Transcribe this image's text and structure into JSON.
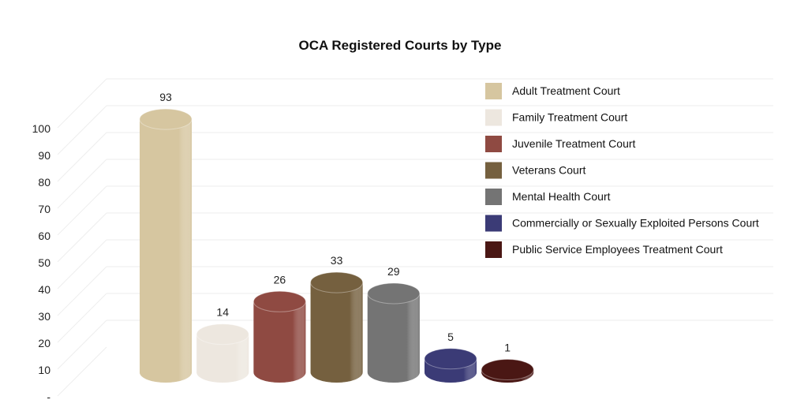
{
  "chart_data": {
    "type": "bar",
    "style": "3d-cylinder",
    "title": "OCA Registered Courts by Type",
    "xlabel": "",
    "ylabel": "",
    "ylim": [
      0,
      100
    ],
    "y_ticks": [
      "-",
      "10",
      "20",
      "30",
      "40",
      "50",
      "60",
      "70",
      "80",
      "90",
      "100"
    ],
    "grid": true,
    "legend_position": "top-right",
    "categories": [
      "Adult Treatment Court",
      "Family Treatment Court",
      "Juvenile Treatment Court",
      "Veterans Court",
      "Mental Health Court",
      "Commercially or Sexually Exploited Persons Court",
      "Public Service Employees Treatment Court"
    ],
    "values": [
      93,
      14,
      26,
      33,
      29,
      5,
      1
    ],
    "colors": [
      "#d6c6a0",
      "#ede7df",
      "#8f4a42",
      "#75603f",
      "#747474",
      "#3b3b76",
      "#4a1714"
    ]
  }
}
